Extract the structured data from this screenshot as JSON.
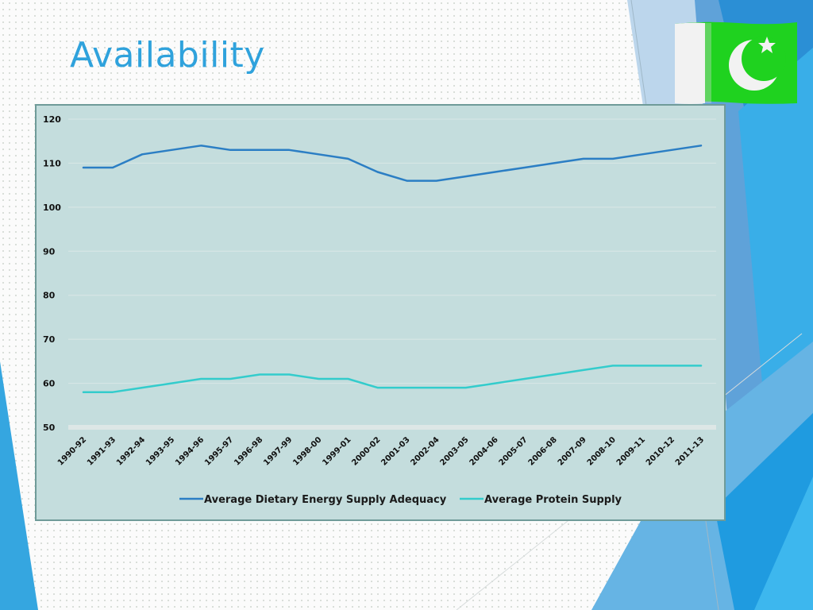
{
  "slide": {
    "title": "Availability"
  },
  "theme": {
    "accent_blue": "#2fa2dc",
    "chart_background": "#c4dddd",
    "flag_green": "#1fd21f",
    "flag_white": "#f2f2f2"
  },
  "icons": {
    "flag": "pakistan-flag"
  },
  "chart_data": {
    "type": "line",
    "title": "",
    "xlabel": "",
    "ylabel": "",
    "ylim": [
      50,
      120
    ],
    "yticks": [
      "50",
      "60",
      "70",
      "80",
      "90",
      "100",
      "110",
      "120"
    ],
    "grid": true,
    "legend_position": "bottom",
    "categories": [
      "1990-92",
      "1991-93",
      "1992-94",
      "1993-95",
      "1994-96",
      "1995-97",
      "1996-98",
      "1997-99",
      "1998-00",
      "1999-01",
      "2000-02",
      "2001-03",
      "2002-04",
      "2003-05",
      "2004-06",
      "2005-07",
      "2006-08",
      "2007-09",
      "2008-10",
      "2009-11",
      "2010-12",
      "2011-13"
    ],
    "series": [
      {
        "name": "Average Dietary Energy Supply Adequacy",
        "color": "#2b7ec4",
        "values": [
          109,
          109,
          112,
          113,
          114,
          113,
          113,
          113,
          112,
          111,
          108,
          106,
          106,
          107,
          108,
          109,
          110,
          111,
          111,
          112,
          113,
          114
        ]
      },
      {
        "name": "Average Protein Supply",
        "color": "#33cccc",
        "values": [
          58,
          58,
          59,
          60,
          61,
          61,
          62,
          62,
          61,
          61,
          59,
          59,
          59,
          59,
          60,
          61,
          62,
          63,
          64,
          64,
          64,
          64
        ]
      }
    ]
  }
}
